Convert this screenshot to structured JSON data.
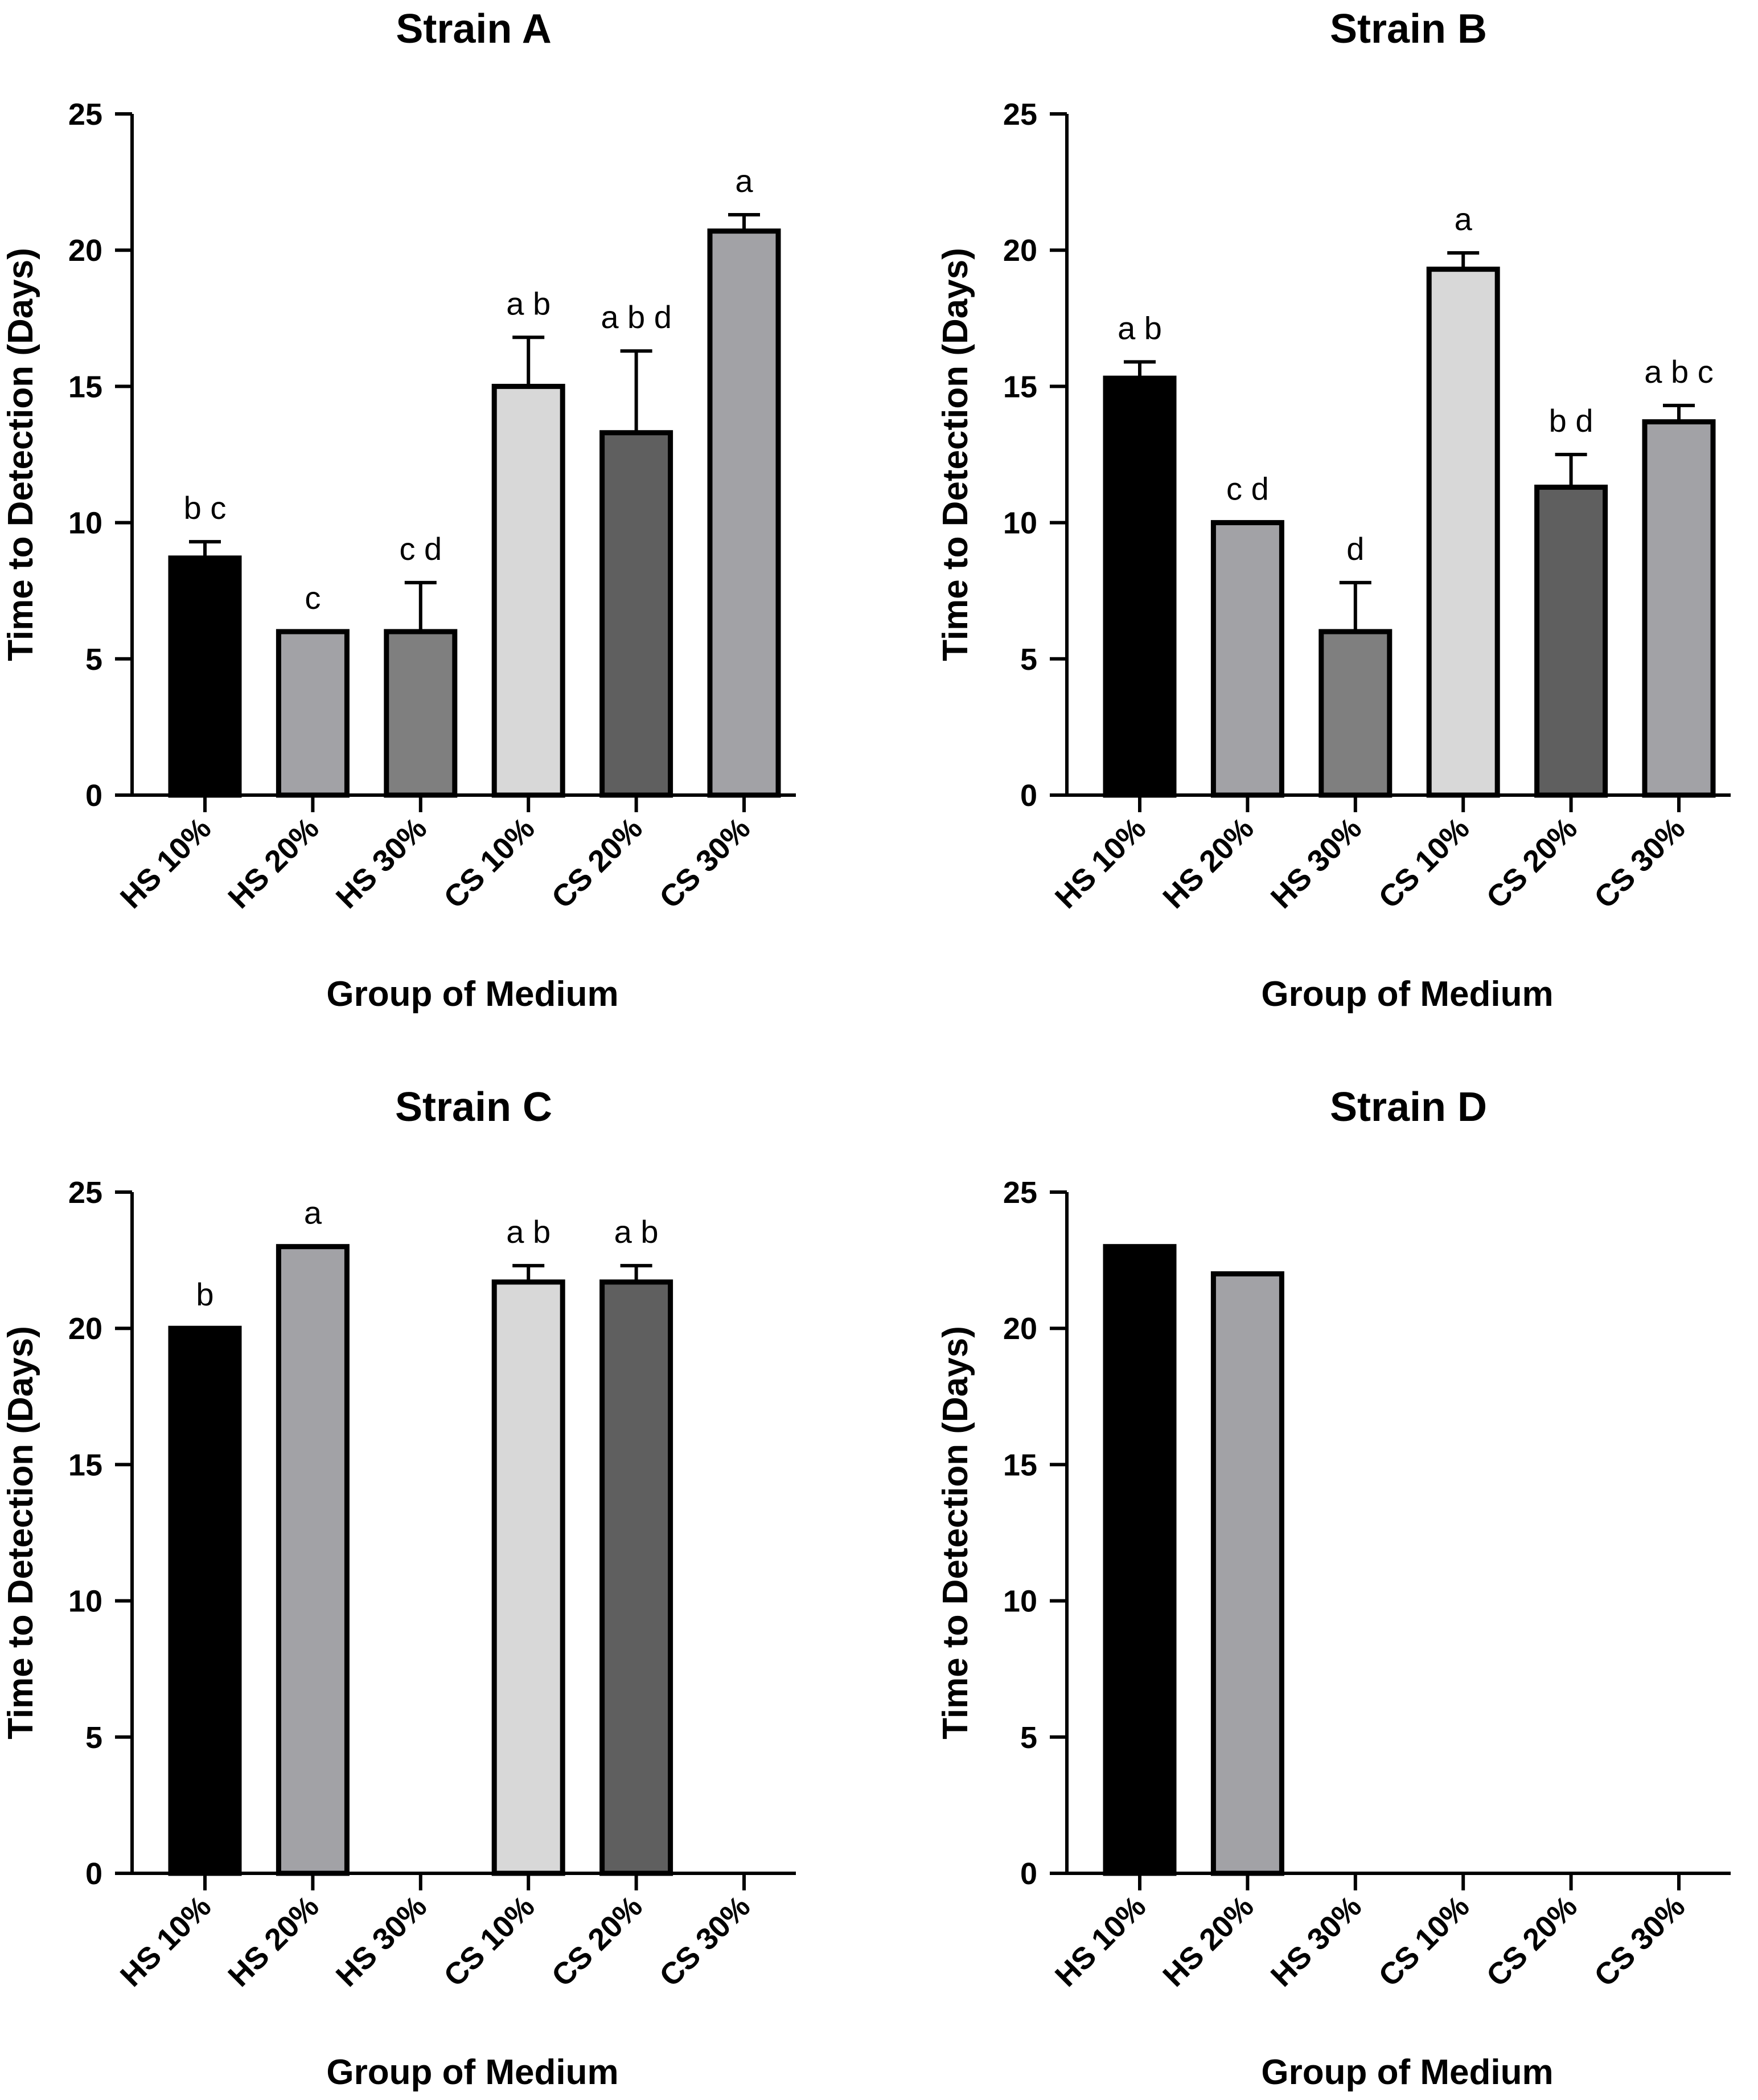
{
  "figure": {
    "y_axis_label": "Time to Detection (Days)",
    "x_axis_label": "Group of Medium"
  },
  "colors": {
    "HS 10%": "#000000",
    "HS 20%": "#a2a2a6",
    "HS 30%": "#7f7f7f",
    "CS 10%": "#d8d8d8",
    "CS 20%": "#5f5f5f",
    "CS 30%": "#a2a2a6",
    "outline": "#000000"
  },
  "chart_data": [
    {
      "type": "bar",
      "title": "Strain A",
      "xlabel": "Group of Medium",
      "ylabel": "Time to Detection (Days)",
      "ylim": [
        0,
        25
      ],
      "yticks": [
        0,
        5,
        10,
        15,
        20,
        25
      ],
      "categories": [
        "HS 10%",
        "HS 20%",
        "HS 30%",
        "CS 10%",
        "CS 20%",
        "CS 30%"
      ],
      "values": [
        8.7,
        6.0,
        6.0,
        15.0,
        13.3,
        20.7
      ],
      "errors": [
        0.6,
        0,
        1.8,
        1.8,
        3.0,
        0.6
      ],
      "letters": [
        "b c",
        "c",
        "c d",
        "a b",
        "a b d",
        "a"
      ]
    },
    {
      "type": "bar",
      "title": "Strain B",
      "xlabel": "Group of Medium",
      "ylabel": "Time to Detection (Days)",
      "ylim": [
        0,
        25
      ],
      "yticks": [
        0,
        5,
        10,
        15,
        20,
        25
      ],
      "categories": [
        "HS 10%",
        "HS 20%",
        "HS 30%",
        "CS 10%",
        "CS 20%",
        "CS 30%"
      ],
      "values": [
        15.3,
        10.0,
        6.0,
        19.3,
        11.3,
        13.7
      ],
      "errors": [
        0.6,
        0,
        1.8,
        0.6,
        1.2,
        0.6
      ],
      "letters": [
        "a b",
        "c d",
        "d",
        "a",
        "b d",
        "a b c"
      ]
    },
    {
      "type": "bar",
      "title": "Strain C",
      "xlabel": "Group of Medium",
      "ylabel": "Time to Detection (Days)",
      "ylim": [
        0,
        25
      ],
      "yticks": [
        0,
        5,
        10,
        15,
        20,
        25
      ],
      "categories": [
        "HS 10%",
        "HS 20%",
        "HS 30%",
        "CS 10%",
        "CS 20%",
        "CS 30%"
      ],
      "values": [
        20.0,
        23.0,
        0,
        21.7,
        21.7,
        0
      ],
      "errors": [
        0,
        0,
        0,
        0.6,
        0.6,
        0
      ],
      "letters": [
        "b",
        "a",
        "",
        "a b",
        "a b",
        ""
      ]
    },
    {
      "type": "bar",
      "title": "Strain D",
      "xlabel": "Group of Medium",
      "ylabel": "Time to Detection (Days)",
      "ylim": [
        0,
        25
      ],
      "yticks": [
        0,
        5,
        10,
        15,
        20,
        25
      ],
      "categories": [
        "HS 10%",
        "HS 20%",
        "HS 30%",
        "CS 10%",
        "CS 20%",
        "CS 30%"
      ],
      "values": [
        23.0,
        22.0,
        0,
        0,
        0,
        0
      ],
      "errors": [
        0,
        0,
        0,
        0,
        0,
        0
      ],
      "letters": [
        "",
        "",
        "",
        "",
        "",
        ""
      ]
    }
  ]
}
